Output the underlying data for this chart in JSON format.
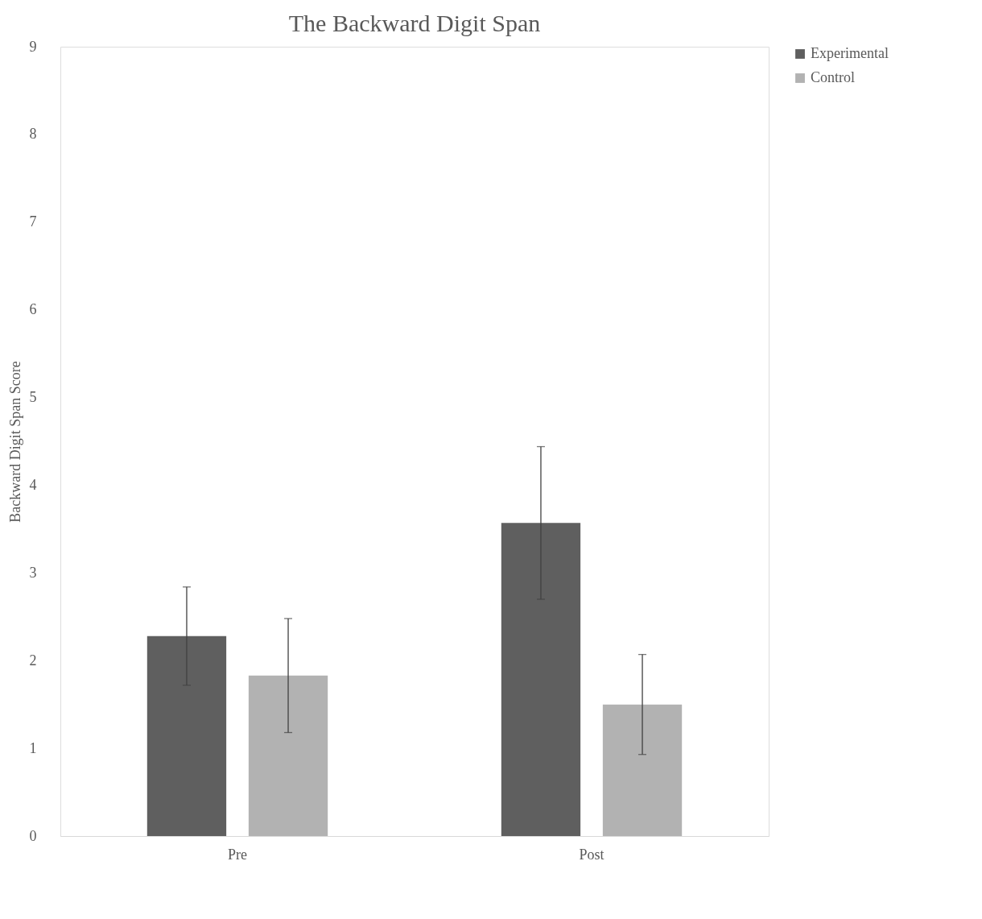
{
  "chart_data": {
    "type": "bar",
    "title": "The Backward Digit Span",
    "ylabel": "Backward Digit Span Score",
    "categories": [
      "Pre",
      "Post"
    ],
    "series": [
      {
        "name": "Experimental",
        "color": "#5f5f5f",
        "values": [
          2.28,
          3.57
        ],
        "errors": [
          0.56,
          0.87
        ]
      },
      {
        "name": "Control",
        "color": "#b2b2b2",
        "values": [
          1.83,
          1.5
        ],
        "errors": [
          0.65,
          0.57
        ]
      }
    ],
    "ylim": [
      0,
      9
    ],
    "yticks": [
      0,
      1,
      2,
      3,
      4,
      5,
      6,
      7,
      8,
      9
    ],
    "grid": false,
    "legend": "right"
  }
}
